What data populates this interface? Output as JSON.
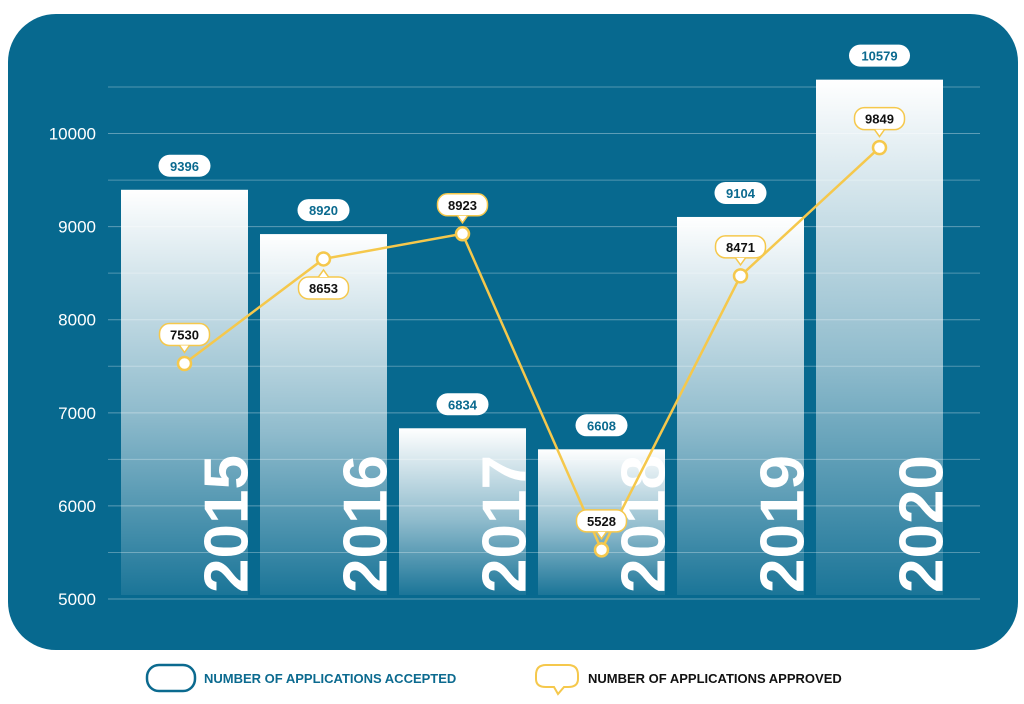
{
  "chart_data": {
    "type": "bar-line",
    "categories": [
      "2015",
      "2016",
      "2017",
      "2018",
      "2019",
      "2020"
    ],
    "series": [
      {
        "name": "NUMBER OF APPLICATIONS ACCEPTED",
        "type": "bar",
        "color": "#0b6a8f",
        "values": [
          9396,
          8920,
          6834,
          6608,
          9104,
          10579
        ]
      },
      {
        "name": "NUMBER OF APPLICATIONS APPROVED",
        "type": "line",
        "color": "#f5c84c",
        "values": [
          7530,
          8653,
          8923,
          5528,
          8471,
          9849
        ],
        "label_positions": [
          "above",
          "below",
          "above",
          "above",
          "above",
          "above"
        ]
      }
    ],
    "ylim": [
      5000,
      10500
    ],
    "yticks": [
      5000,
      6000,
      7000,
      8000,
      9000,
      10000
    ],
    "minor_yticks": [
      5500,
      6500,
      7500,
      8500,
      9500,
      10500
    ],
    "grid": true,
    "legend": "bottom",
    "background": "#07698f"
  }
}
